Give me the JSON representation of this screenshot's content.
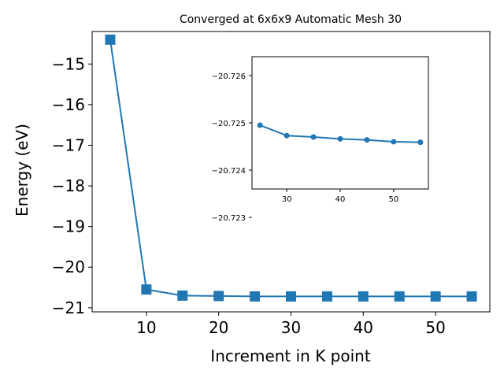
{
  "chart_data": [
    {
      "type": "line",
      "role": "main",
      "title": "Converged at 6x6x9 Automatic Mesh 30",
      "xlabel": "Increment in K point",
      "ylabel": "Energy (eV)",
      "xlim": [
        2.5,
        57.5
      ],
      "ylim": [
        -21.1,
        -14.2
      ],
      "xticks": [
        10,
        20,
        30,
        40,
        50
      ],
      "yticks": [
        -21,
        -20,
        -19,
        -18,
        -17,
        -16,
        -15
      ],
      "marker": "square",
      "color": "#1f77b4",
      "grid": false,
      "series": [
        {
          "x": [
            5,
            10,
            15,
            20,
            25,
            30,
            35,
            40,
            45,
            50,
            55
          ],
          "values": [
            -14.4,
            -20.55,
            -20.7,
            -20.71,
            -20.72,
            -20.72,
            -20.72,
            -20.72,
            -20.72,
            -20.72,
            -20.72
          ]
        }
      ]
    },
    {
      "type": "line",
      "role": "inset",
      "title": "",
      "xlabel": "",
      "ylabel": "",
      "xlim": [
        23.5,
        56.5
      ],
      "ylim": [
        -20.7236,
        -20.7264
      ],
      "xticks": [
        30,
        40,
        50
      ],
      "yticks": [
        -20.726,
        -20.725,
        -20.724,
        -20.723
      ],
      "marker": "circle",
      "color": "#1f77b4",
      "grid": false,
      "series": [
        {
          "x": [
            25,
            30,
            35,
            40,
            45,
            50,
            55
          ],
          "values": [
            -20.72495,
            -20.72473,
            -20.7247,
            -20.72466,
            -20.72464,
            -20.7246,
            -20.72459
          ]
        }
      ]
    }
  ]
}
